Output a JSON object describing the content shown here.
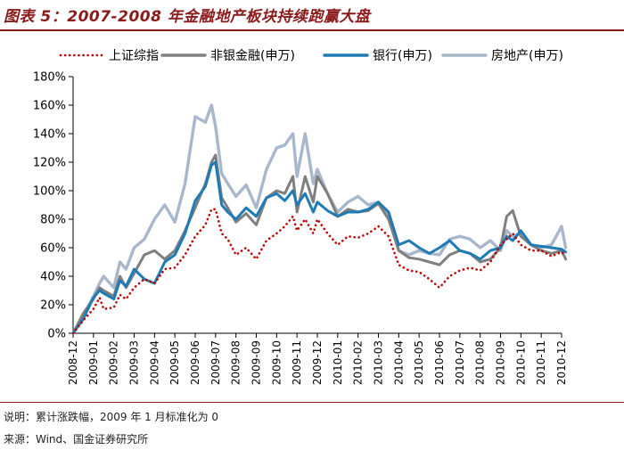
{
  "title": "图表 5：2007-2008 年金融地产板块持续跑赢大盘",
  "note": "说明：累计涨跌幅，2009 年 1 月标准化为 0",
  "source": "来源：Wind、国金证券研究所",
  "colors": {
    "title": "#8B1A1A",
    "series_shangzheng": "#C00000",
    "series_feiyin": "#7F7F7F",
    "series_bank": "#1F7BB5",
    "series_property": "#A9B7CC"
  },
  "chart_data": {
    "type": "line",
    "title": "2007-2008 年金融地产板块持续跑赢大盘",
    "xlabel": "",
    "ylabel": "",
    "ylim": [
      0,
      180
    ],
    "y_ticks": [
      0,
      20,
      40,
      60,
      80,
      100,
      120,
      140,
      160,
      180
    ],
    "y_tick_labels": [
      "0%",
      "20%",
      "40%",
      "60%",
      "80%",
      "100%",
      "120%",
      "140%",
      "160%",
      "180%"
    ],
    "x_tick_labels": [
      "2008-12",
      "2009-01",
      "2009-02",
      "2009-03",
      "2009-04",
      "2009-05",
      "2009-06",
      "2009-07",
      "2009-08",
      "2009-09",
      "2009-10",
      "2009-11",
      "2009-12",
      "2010-01",
      "2010-02",
      "2010-03",
      "2010-04",
      "2010-05",
      "2010-06",
      "2010-07",
      "2010-08",
      "2010-09",
      "2010-10",
      "2010-11",
      "2010-12"
    ],
    "x": [
      0,
      0.5,
      1,
      1.3,
      1.5,
      2,
      2.3,
      2.6,
      3,
      3.5,
      4,
      4.5,
      5,
      5.5,
      6,
      6.5,
      6.8,
      7,
      7.3,
      7.6,
      8,
      8.5,
      9,
      9.5,
      10,
      10.4,
      10.8,
      11,
      11.4,
      11.8,
      12,
      12.5,
      13,
      13.5,
      14,
      14.5,
      15,
      15.5,
      16,
      16.5,
      17,
      17.5,
      18,
      18.5,
      19,
      19.5,
      20,
      20.5,
      21,
      21.3,
      21.6,
      22,
      22.5,
      23,
      23.5,
      24,
      24.2
    ],
    "series": [
      {
        "name": "上证综指",
        "style": "dotted",
        "values": [
          0,
          9,
          17,
          25,
          17,
          18,
          27,
          24,
          32,
          38,
          35,
          45,
          46,
          55,
          68,
          76,
          87,
          87,
          70,
          66,
          55,
          60,
          52,
          65,
          70,
          75,
          82,
          72,
          80,
          70,
          80,
          70,
          62,
          68,
          67,
          70,
          75,
          68,
          48,
          44,
          43,
          38,
          32,
          40,
          44,
          46,
          44,
          50,
          62,
          66,
          70,
          62,
          58,
          58,
          54,
          57,
          55
        ]
      },
      {
        "name": "非银金融(申万)",
        "style": "solid",
        "values": [
          0,
          14,
          24,
          32,
          30,
          26,
          40,
          32,
          42,
          55,
          58,
          52,
          58,
          72,
          88,
          105,
          120,
          125,
          95,
          88,
          78,
          84,
          76,
          95,
          100,
          98,
          110,
          85,
          110,
          92,
          110,
          98,
          82,
          87,
          85,
          86,
          91,
          80,
          58,
          53,
          52,
          50,
          48,
          55,
          58,
          56,
          50,
          52,
          60,
          82,
          86,
          68,
          62,
          58,
          56,
          58,
          52
        ]
      },
      {
        "name": "银行(申万)",
        "style": "solid",
        "values": [
          0,
          10,
          25,
          30,
          28,
          24,
          37,
          33,
          45,
          38,
          35,
          50,
          55,
          70,
          93,
          103,
          118,
          120,
          90,
          85,
          80,
          88,
          82,
          95,
          98,
          93,
          100,
          90,
          98,
          85,
          92,
          86,
          82,
          85,
          85,
          87,
          92,
          85,
          62,
          65,
          60,
          56,
          60,
          65,
          58,
          56,
          52,
          58,
          60,
          68,
          65,
          72,
          62,
          61,
          60,
          59,
          57
        ]
      },
      {
        "name": "房地产(申万)",
        "style": "solid",
        "values": [
          0,
          12,
          26,
          35,
          40,
          32,
          50,
          45,
          60,
          66,
          80,
          90,
          78,
          105,
          152,
          148,
          160,
          145,
          112,
          105,
          96,
          104,
          88,
          115,
          130,
          132,
          140,
          110,
          140,
          105,
          115,
          98,
          85,
          92,
          96,
          90,
          92,
          82,
          58,
          55,
          58,
          56,
          55,
          66,
          68,
          66,
          60,
          65,
          58,
          72,
          68,
          70,
          62,
          60,
          62,
          75,
          60
        ]
      }
    ]
  }
}
